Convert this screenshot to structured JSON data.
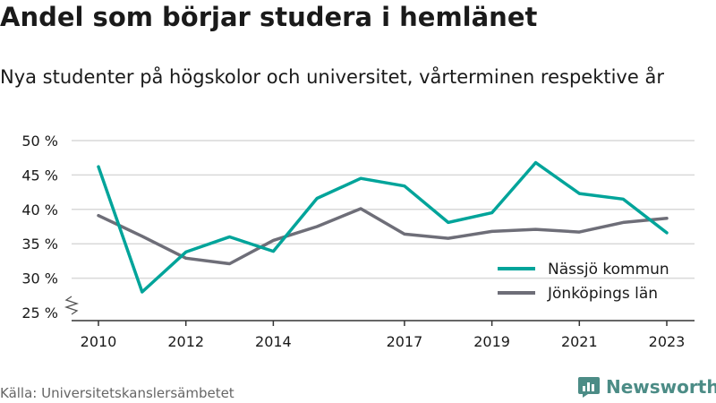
{
  "header": {
    "title": "Andel som börjar studera i hemlänet",
    "subtitle": "Nya studenter på högskolor och universitet, vårterminen respektive år"
  },
  "footer": {
    "source": "Källa: Universitetskanslersämbetet",
    "brand": "Newsworthy"
  },
  "colors": {
    "nassjo": "#00a49a",
    "jonkoping": "#6e6e78",
    "grid": "#d9d9d9",
    "axis": "#333333"
  },
  "icons": {
    "brand": "newsworthy-logo-icon",
    "axis_break": "axis-break-icon"
  },
  "chart_data": {
    "type": "line",
    "title": "Andel som börjar studera i hemlänet",
    "subtitle": "Nya studenter på högskolor och universitet, vårterminen respektive år",
    "x": [
      2010,
      2011,
      2012,
      2013,
      2014,
      2015,
      2016,
      2017,
      2018,
      2019,
      2020,
      2021,
      2022,
      2023
    ],
    "x_ticks": [
      2010,
      2012,
      2014,
      2017,
      2019,
      2021,
      2023
    ],
    "y_ticks": [
      25,
      30,
      35,
      40,
      45,
      50
    ],
    "y_tick_labels": [
      "25 %",
      "30 %",
      "35 %",
      "40 %",
      "45 %",
      "50 %"
    ],
    "ylim": [
      25,
      50
    ],
    "xlim": [
      2010,
      2023
    ],
    "grid": true,
    "legend": "bottom-right",
    "series": [
      {
        "name": "Nässjö kommun",
        "color": "#00a49a",
        "values": [
          46.2,
          28.0,
          33.8,
          36.0,
          33.9,
          41.6,
          44.5,
          43.4,
          38.1,
          39.5,
          46.8,
          42.3,
          41.5,
          36.6
        ]
      },
      {
        "name": "Jönköpings län",
        "color": "#6e6e78",
        "values": [
          39.1,
          36.1,
          32.9,
          32.1,
          35.5,
          37.5,
          40.1,
          36.4,
          35.8,
          36.8,
          37.1,
          36.7,
          38.1,
          38.7
        ]
      }
    ]
  }
}
